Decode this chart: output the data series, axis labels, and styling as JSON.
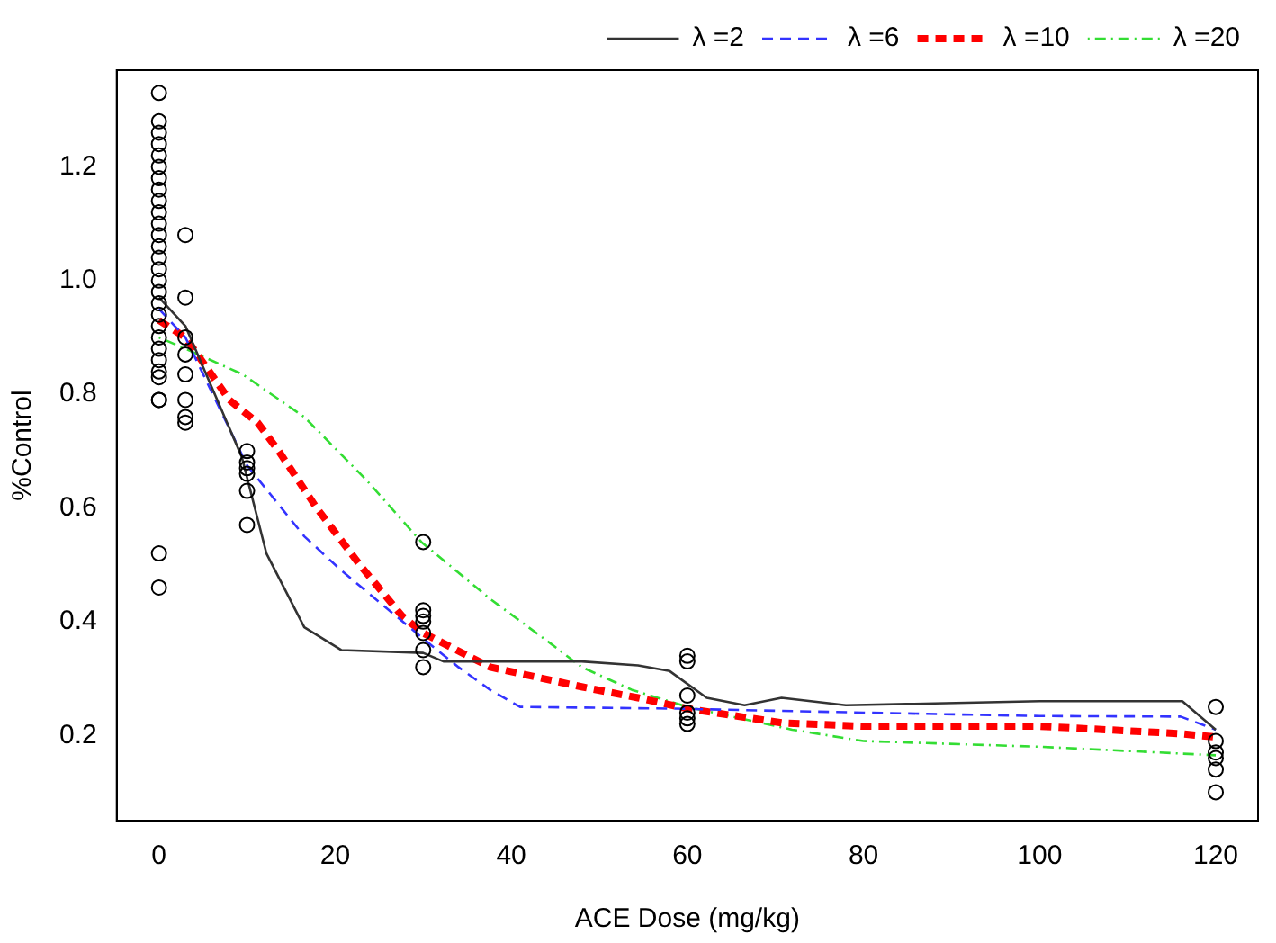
{
  "chart_data": {
    "type": "line",
    "xlabel": "ACE Dose (mg/kg)",
    "ylabel": "%Control",
    "xlim": [
      -4.8,
      124.8
    ],
    "xticks": [
      0,
      20,
      40,
      60,
      80,
      100,
      120
    ],
    "ylim": [
      0.05,
      1.37
    ],
    "yticks": [
      0.2,
      0.4,
      0.6,
      0.8,
      {
        "value": 1,
        "label": "1.0"
      },
      1.2
    ],
    "grid": false,
    "legend": "top right",
    "series": [
      {
        "type": "scatter",
        "color": "#000000",
        "marker": "circle",
        "x": [
          0,
          0,
          0,
          0,
          0,
          0,
          0,
          0,
          0,
          0,
          0,
          0,
          0,
          0,
          0,
          0,
          0,
          0,
          0,
          0,
          0,
          0,
          0,
          0,
          0,
          0,
          0,
          0,
          0,
          3,
          3,
          3,
          3,
          3,
          3,
          3,
          3,
          10,
          10,
          10,
          10,
          10,
          10,
          30,
          30,
          30,
          30,
          30,
          30,
          30,
          60,
          60,
          60,
          60,
          60,
          60,
          120,
          120,
          120,
          120,
          120,
          120
        ],
        "values": [
          1.33,
          1.28,
          1.26,
          1.24,
          1.22,
          1.2,
          1.18,
          1.16,
          1.14,
          1.12,
          1.1,
          1.08,
          1.06,
          1.04,
          1.02,
          1.0,
          0.98,
          0.96,
          0.94,
          0.92,
          0.9,
          0.88,
          0.86,
          0.84,
          0.83,
          0.79,
          0.79,
          0.52,
          0.46,
          1.08,
          0.97,
          0.9,
          0.87,
          0.835,
          0.79,
          0.76,
          0.75,
          0.7,
          0.68,
          0.67,
          0.66,
          0.63,
          0.57,
          0.54,
          0.42,
          0.41,
          0.4,
          0.38,
          0.35,
          0.32,
          0.34,
          0.33,
          0.27,
          0.24,
          0.23,
          0.22,
          0.25,
          0.19,
          0.17,
          0.16,
          0.14,
          0.1
        ]
      },
      {
        "name": "λ =2",
        "color": "#333333",
        "line_style": "solid",
        "marker": "none",
        "x": [
          0,
          3,
          9.4,
          12.2,
          16.5,
          20.7,
          30,
          32.3,
          48,
          54.4,
          58,
          62.2,
          66.5,
          70.7,
          78,
          100,
          116.2,
          120
        ],
        "values": [
          0.97,
          0.92,
          0.69,
          0.52,
          0.39,
          0.35,
          0.345,
          0.33,
          0.33,
          0.323,
          0.313,
          0.266,
          0.253,
          0.266,
          0.253,
          0.26,
          0.26,
          0.21
        ]
      },
      {
        "name": "λ =6",
        "color": "#3333ff",
        "line_style": "dashed",
        "marker": "none",
        "x": [
          0,
          3,
          10,
          16.5,
          20.7,
          30,
          34,
          37.6,
          41,
          58.6,
          80,
          100,
          116,
          120
        ],
        "values": [
          0.95,
          0.9,
          0.675,
          0.55,
          0.49,
          0.37,
          0.32,
          0.28,
          0.25,
          0.247,
          0.24,
          0.234,
          0.233,
          0.21
        ]
      },
      {
        "name": "λ =10",
        "color": "#ff0000",
        "line_style": "dashed",
        "marker": "none",
        "x": [
          0,
          3,
          8,
          11.2,
          13.6,
          17.9,
          22.8,
          27.6,
          30,
          37.6,
          48.1,
          54.4,
          60,
          70.7,
          80,
          100,
          116,
          120
        ],
        "values": [
          0.93,
          0.9,
          0.79,
          0.75,
          0.7,
          0.6,
          0.5,
          0.41,
          0.38,
          0.32,
          0.285,
          0.266,
          0.247,
          0.222,
          0.216,
          0.216,
          0.203,
          0.197
        ]
      },
      {
        "name": "λ =20",
        "color": "#33dd33",
        "line_style": "dotted",
        "marker": "none",
        "x": [
          0,
          3,
          9.5,
          16.5,
          23.5,
          29.8,
          37.6,
          44.6,
          48,
          53.7,
          60,
          71.9,
          80,
          100,
          120
        ],
        "values": [
          0.9,
          0.88,
          0.835,
          0.76,
          0.65,
          0.54,
          0.44,
          0.36,
          0.32,
          0.28,
          0.25,
          0.21,
          0.19,
          0.18,
          0.165
        ]
      }
    ]
  }
}
